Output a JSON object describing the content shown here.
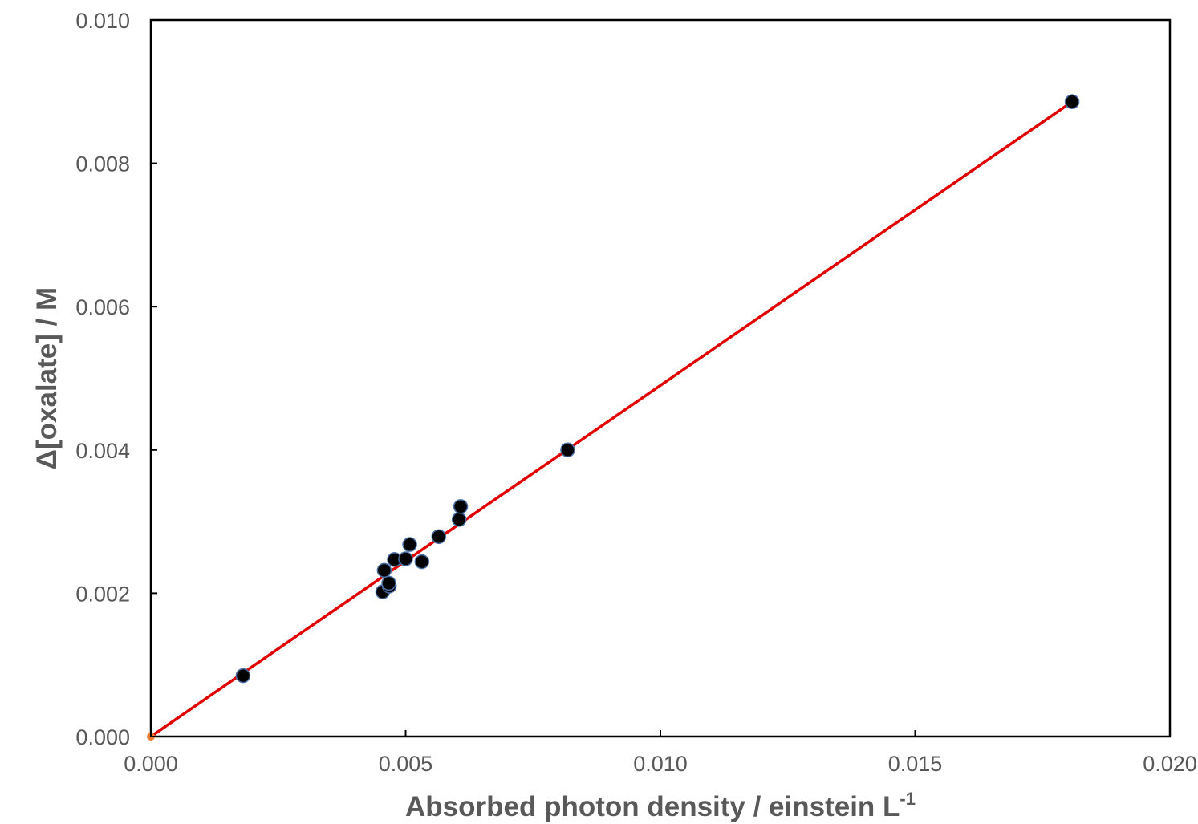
{
  "chart_data": {
    "type": "scatter",
    "xlabel": "Absorbed photon density / einstein L",
    "xlabel_superscript": "-1",
    "ylabel": "Δ[oxalate] / M",
    "xlim": [
      0,
      0.02
    ],
    "ylim": [
      0,
      0.01
    ],
    "x_ticks": [
      0,
      0.005,
      0.01,
      0.015,
      0.02
    ],
    "x_tick_labels": [
      "0.000",
      "0.005",
      "0.010",
      "0.015",
      "0.020"
    ],
    "y_ticks": [
      0,
      0.002,
      0.004,
      0.006,
      0.008,
      0.01
    ],
    "y_tick_labels": [
      "0.000",
      "0.002",
      "0.004",
      "0.006",
      "0.008",
      "0.010"
    ],
    "grid": false,
    "legend": "none",
    "series": [
      {
        "marker": "circle",
        "color": "#000000",
        "edge_color": "#4a6fa5",
        "points": [
          {
            "x": 0.00181,
            "y": 0.00085
          },
          {
            "x": 0.00455,
            "y": 0.00202
          },
          {
            "x": 0.00468,
            "y": 0.0021
          },
          {
            "x": 0.00467,
            "y": 0.00214
          },
          {
            "x": 0.00458,
            "y": 0.00232
          },
          {
            "x": 0.00478,
            "y": 0.00247
          },
          {
            "x": 0.005,
            "y": 0.00248
          },
          {
            "x": 0.00508,
            "y": 0.00268
          },
          {
            "x": 0.00532,
            "y": 0.00244
          },
          {
            "x": 0.00565,
            "y": 0.00279
          },
          {
            "x": 0.00605,
            "y": 0.00303
          },
          {
            "x": 0.00608,
            "y": 0.00321
          },
          {
            "x": 0.00818,
            "y": 0.004
          },
          {
            "x": 0.01808,
            "y": 0.00886
          }
        ]
      },
      {
        "marker": "circle",
        "color": "#ed7d31",
        "points": [
          {
            "x": 0.0,
            "y": 0.0
          }
        ]
      }
    ],
    "fit_line": {
      "color": "#e00000",
      "x": [
        0.0,
        0.01808
      ],
      "y": [
        0.0,
        0.00886
      ]
    }
  }
}
